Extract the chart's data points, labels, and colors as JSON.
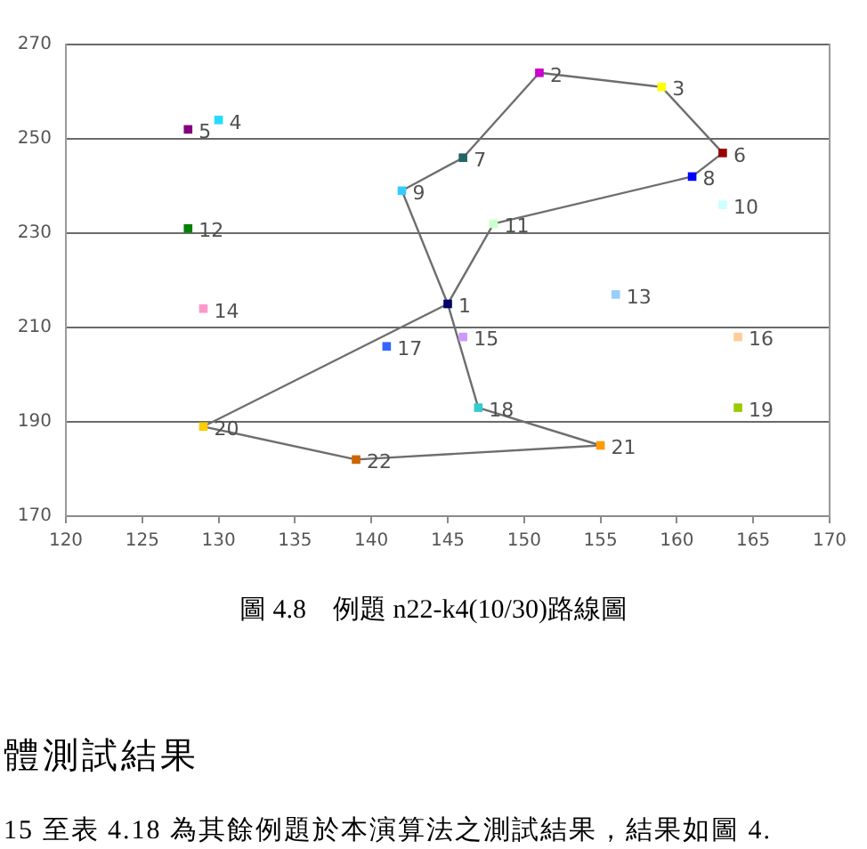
{
  "chart_data": {
    "type": "scatter",
    "title": "圖 4.8    例題 n22-k4(10/30)路線圖",
    "xlim": [
      120,
      170
    ],
    "xticks": [
      120,
      125,
      130,
      135,
      140,
      145,
      150,
      155,
      160,
      165,
      170
    ],
    "ylim": [
      170,
      270
    ],
    "yticks": [
      170,
      190,
      210,
      230,
      250,
      270
    ],
    "grid": "y",
    "series": [
      {
        "type": "line",
        "x": [
          142,
          145
        ],
        "values": [
          239,
          215
        ],
        "color": "#6e6e6e",
        "marker": "none"
      },
      {
        "type": "line",
        "x": [
          142,
          146,
          151,
          159,
          163
        ],
        "values": [
          239,
          246,
          264,
          261,
          247
        ],
        "color": "#6e6e6e",
        "marker": "none"
      },
      {
        "type": "line",
        "x": [
          145,
          148,
          161,
          163
        ],
        "values": [
          215,
          232,
          242,
          247
        ],
        "color": "#6e6e6e",
        "marker": "none"
      },
      {
        "type": "line",
        "x": [
          145,
          147,
          155
        ],
        "values": [
          215,
          193,
          185
        ],
        "color": "#6e6e6e",
        "marker": "none"
      },
      {
        "type": "line",
        "x": [
          129,
          139,
          155
        ],
        "values": [
          189,
          182,
          185
        ],
        "color": "#6e6e6e",
        "marker": "none"
      },
      {
        "type": "line",
        "x": [
          129,
          145
        ],
        "values": [
          189,
          215
        ],
        "color": "#6e6e6e",
        "marker": "none"
      },
      {
        "marker": "square",
        "x": [
          145,
          151,
          159,
          130,
          128,
          163,
          146,
          161,
          142,
          163,
          148,
          128,
          156,
          129,
          146,
          164,
          141,
          147,
          164,
          129,
          155,
          139
        ],
        "values": [
          215,
          264,
          261,
          254,
          252,
          247,
          246,
          242,
          239,
          236,
          232,
          231,
          217,
          214,
          208,
          208,
          206,
          193,
          193,
          189,
          185,
          182
        ],
        "colors": [
          "#000066",
          "#cc00cc",
          "#ffff00",
          "#22ddff",
          "#800080",
          "#990000",
          "#226666",
          "#0000ff",
          "#33ccff",
          "#ccffff",
          "#ccffcc",
          "#008000",
          "#99ccff",
          "#ff99cc",
          "#cc99ff",
          "#ffcc99",
          "#3366ff",
          "#33cccc",
          "#99cc00",
          "#ffcc00",
          "#ff9900",
          "#cc6600"
        ]
      }
    ],
    "annotations": [
      {
        "text": "1",
        "x": 145,
        "y": 215
      },
      {
        "text": "2",
        "x": 151,
        "y": 264
      },
      {
        "text": "3",
        "x": 159,
        "y": 261
      },
      {
        "text": "4",
        "x": 130,
        "y": 254
      },
      {
        "text": "5",
        "x": 128,
        "y": 252
      },
      {
        "text": "6",
        "x": 163,
        "y": 247
      },
      {
        "text": "7",
        "x": 146,
        "y": 246
      },
      {
        "text": "8",
        "x": 161,
        "y": 242
      },
      {
        "text": "9",
        "x": 142,
        "y": 239
      },
      {
        "text": "10",
        "x": 163,
        "y": 236
      },
      {
        "text": "11",
        "x": 148,
        "y": 232
      },
      {
        "text": "12",
        "x": 128,
        "y": 231
      },
      {
        "text": "13",
        "x": 156,
        "y": 217
      },
      {
        "text": "14",
        "x": 129,
        "y": 214
      },
      {
        "text": "15",
        "x": 146,
        "y": 208
      },
      {
        "text": "16",
        "x": 164,
        "y": 208
      },
      {
        "text": "17",
        "x": 141,
        "y": 206
      },
      {
        "text": "18",
        "x": 147,
        "y": 193
      },
      {
        "text": "19",
        "x": 164,
        "y": 193
      },
      {
        "text": "20",
        "x": 129,
        "y": 189
      },
      {
        "text": "21",
        "x": 155,
        "y": 185
      },
      {
        "text": "22",
        "x": 139,
        "y": 182
      },
      "體測試結果",
      "15 至表 4.18 為其餘例題於本演算法之測試結果，結果如圖 4."
    ]
  }
}
